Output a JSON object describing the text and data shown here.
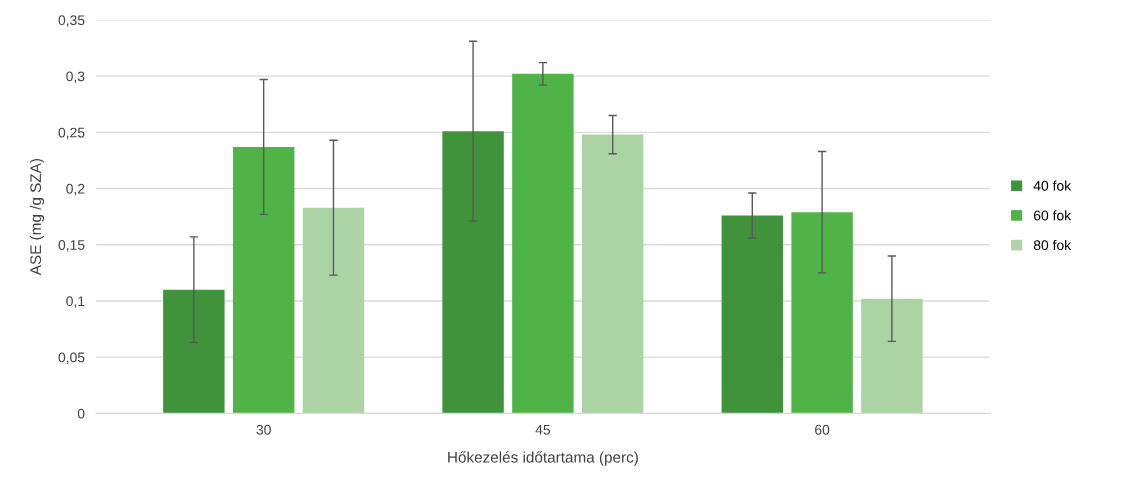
{
  "chart_data": {
    "type": "bar",
    "xlabel": "Hőkezelés időtartama (perc)",
    "ylabel": "ASE (mg /g SZA)",
    "categories": [
      "30",
      "45",
      "60"
    ],
    "series": [
      {
        "name": "40 fok",
        "color": "#40933a",
        "values": [
          0.11,
          0.251,
          0.176
        ],
        "errors": [
          0.047,
          0.08,
          0.02
        ]
      },
      {
        "name": "60 fok",
        "color": "#50b348",
        "values": [
          0.237,
          0.302,
          0.179
        ],
        "errors": [
          0.06,
          0.01,
          0.054
        ]
      },
      {
        "name": "80 fok",
        "color": "#abd3a4",
        "values": [
          0.183,
          0.248,
          0.102
        ],
        "errors": [
          0.06,
          0.017,
          0.038
        ]
      }
    ],
    "ylim": [
      0,
      0.35
    ],
    "yticks": [
      0,
      {
        "value": 0.05,
        "label": "0,05"
      },
      {
        "value": 0.1,
        "label": "0,1"
      },
      {
        "value": 0.15,
        "label": "0,15"
      },
      {
        "value": 0.2,
        "label": "0,2"
      },
      {
        "value": 0.25,
        "label": "0,25"
      },
      {
        "value": 0.3,
        "label": "0,3"
      },
      {
        "value": 0.35,
        "label": "0,35"
      }
    ],
    "grid": "y",
    "legend": "right"
  }
}
